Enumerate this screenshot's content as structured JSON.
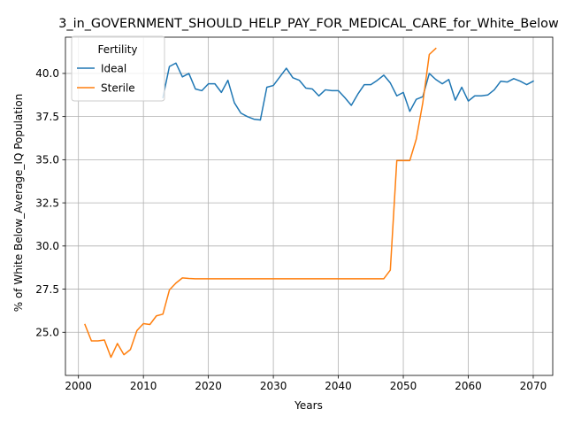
{
  "chart_data": {
    "type": "line",
    "title": "3_in_GOVERNMENT_SHOULD_HELP_PAY_FOR_MEDICAL_CARE_for_White_Below",
    "xlabel": "Years",
    "ylabel": "% of White Below_Average_IQ Population",
    "xlim": [
      1998,
      2073
    ],
    "ylim": [
      22.5,
      42.1
    ],
    "grid": true,
    "legend": {
      "title": "Fertility",
      "placement": "top-left"
    },
    "x_ticks": [
      2000,
      2010,
      2020,
      2030,
      2040,
      2050,
      2060,
      2070
    ],
    "x_tick_labels": [
      "2000",
      "2010",
      "2020",
      "2030",
      "2040",
      "2050",
      "2060",
      "2070"
    ],
    "y_ticks": [
      25.0,
      27.5,
      30.0,
      32.5,
      35.0,
      37.5,
      40.0
    ],
    "y_tick_labels": [
      "25.0",
      "27.5",
      "30.0",
      "32.5",
      "35.0",
      "37.5",
      "40.0"
    ],
    "series": [
      {
        "name": "Ideal",
        "color": "#1f77b4",
        "x": [
          2013,
          2014,
          2015,
          2016,
          2017,
          2018,
          2019,
          2020,
          2021,
          2022,
          2023,
          2024,
          2025,
          2026,
          2027,
          2028,
          2029,
          2030,
          2031,
          2032,
          2033,
          2034,
          2035,
          2036,
          2037,
          2038,
          2039,
          2040,
          2041,
          2042,
          2043,
          2044,
          2045,
          2046,
          2047,
          2048,
          2049,
          2050,
          2051,
          2052,
          2053,
          2054,
          2055,
          2056,
          2057,
          2058,
          2059,
          2060,
          2061,
          2062,
          2063,
          2064,
          2065,
          2066,
          2067,
          2068,
          2069,
          2070
        ],
        "values": [
          38.6,
          40.4,
          40.6,
          39.8,
          40.0,
          39.1,
          39.0,
          39.4,
          39.4,
          38.9,
          39.6,
          38.3,
          37.7,
          37.5,
          37.35,
          37.3,
          39.2,
          39.3,
          39.8,
          40.3,
          39.75,
          39.6,
          39.15,
          39.1,
          38.7,
          39.05,
          39.0,
          39.0,
          38.6,
          38.15,
          38.8,
          39.35,
          39.35,
          39.6,
          39.9,
          39.45,
          38.7,
          38.9,
          37.8,
          38.5,
          38.65,
          40.0,
          39.65,
          39.4,
          39.65,
          38.45,
          39.2,
          38.4,
          38.7,
          38.7,
          38.75,
          39.05,
          39.55,
          39.5,
          39.7,
          39.55,
          39.35,
          39.55
        ]
      },
      {
        "name": "Sterile",
        "color": "#ff7f0e",
        "x": [
          2001,
          2002,
          2003,
          2004,
          2005,
          2006,
          2007,
          2008,
          2009,
          2010,
          2011,
          2012,
          2013,
          2014,
          2015,
          2016,
          2017,
          2018,
          2019,
          2020,
          2021,
          2022,
          2023,
          2024,
          2025,
          2026,
          2027,
          2028,
          2029,
          2030,
          2031,
          2032,
          2033,
          2034,
          2035,
          2036,
          2037,
          2038,
          2039,
          2040,
          2041,
          2042,
          2043,
          2044,
          2045,
          2046,
          2047,
          2048,
          2049,
          2050,
          2051,
          2052,
          2053,
          2054,
          2055
        ],
        "values": [
          25.45,
          24.5,
          24.5,
          24.55,
          23.55,
          24.35,
          23.7,
          24.0,
          25.1,
          25.5,
          25.45,
          25.95,
          26.05,
          27.45,
          27.85,
          28.15,
          28.12,
          28.1,
          28.1,
          28.1,
          28.1,
          28.1,
          28.1,
          28.1,
          28.1,
          28.1,
          28.1,
          28.1,
          28.1,
          28.1,
          28.1,
          28.1,
          28.1,
          28.1,
          28.1,
          28.1,
          28.1,
          28.1,
          28.1,
          28.1,
          28.1,
          28.1,
          28.1,
          28.1,
          28.1,
          28.1,
          28.1,
          28.6,
          34.95,
          34.95,
          34.95,
          36.2,
          38.3,
          41.1,
          41.45
        ]
      }
    ]
  }
}
